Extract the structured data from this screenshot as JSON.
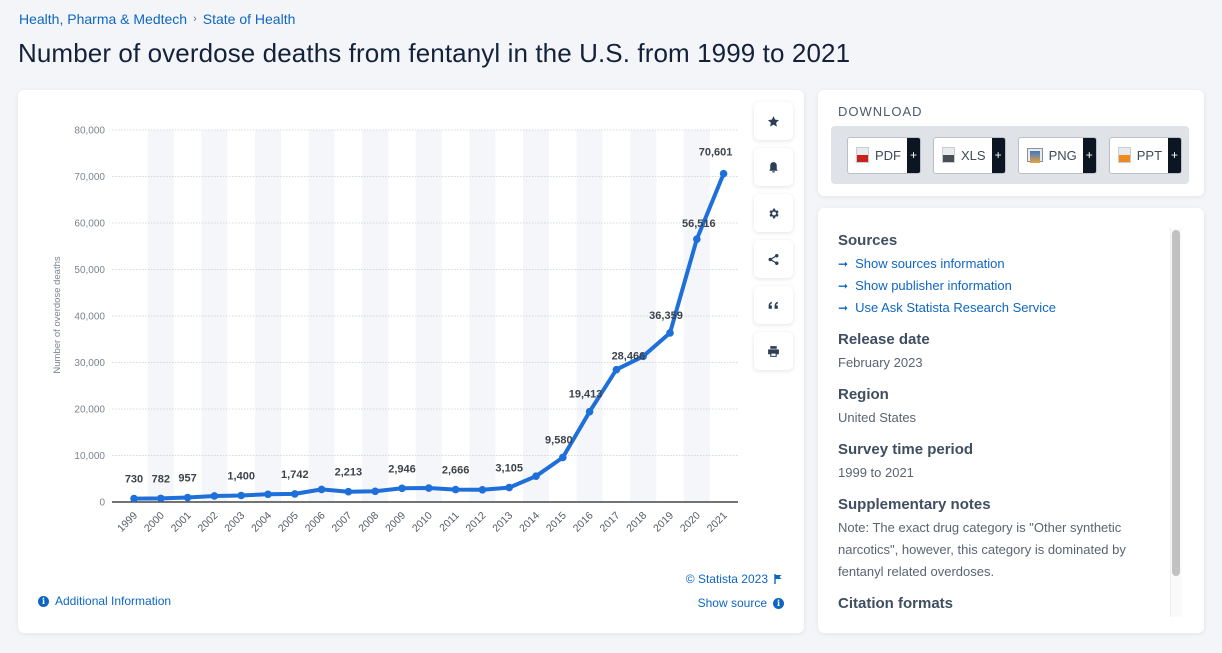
{
  "breadcrumb": [
    "Health, Pharma & Medtech",
    "State of Health"
  ],
  "breadcrumb_separator": "›",
  "title": "Number of overdose deaths from fentanyl in the U.S. from 1999 to 2021",
  "colors": {
    "line": "#1e6fd9",
    "accent": "#0e66c4",
    "band": "#f5f6f9",
    "title": "#14213a"
  },
  "chart_data": {
    "type": "line",
    "title": "Number of overdose deaths from fentanyl in the U.S. from 1999 to 2021",
    "xlabel": "",
    "ylabel": "Number of overdose deaths",
    "ylim": [
      0,
      80000
    ],
    "yticks": [
      0,
      10000,
      20000,
      30000,
      40000,
      50000,
      60000,
      70000,
      80000
    ],
    "ytick_labels": [
      "0",
      "10,000",
      "20,000",
      "30,000",
      "40,000",
      "50,000",
      "60,000",
      "70,000",
      "80,000"
    ],
    "grid": true,
    "legend": "none",
    "categories": [
      "1999",
      "2000",
      "2001",
      "2002",
      "2003",
      "2004",
      "2005",
      "2006",
      "2007",
      "2008",
      "2009",
      "2010",
      "2011",
      "2012",
      "2013",
      "2014",
      "2015",
      "2016",
      "2017",
      "2018",
      "2019",
      "2020",
      "2021"
    ],
    "series": [
      {
        "name": "Number of overdose deaths",
        "values": [
          730,
          782,
          957,
          1295,
          1400,
          1664,
          1742,
          2707,
          2213,
          2306,
          2946,
          3007,
          2666,
          2628,
          3105,
          5544,
          9580,
          19413,
          28466,
          31335,
          36359,
          56516,
          70601
        ],
        "labels": [
          "730",
          "782",
          "957",
          null,
          "1,400",
          null,
          "1,742",
          null,
          "2,213",
          null,
          "2,946",
          null,
          "2,666",
          null,
          "3,105",
          null,
          "9,580",
          "19,413",
          "28,466",
          null,
          "36,359",
          "56,516",
          "70,601"
        ]
      }
    ]
  },
  "chart_footer": {
    "copyright": "© Statista 2023",
    "show_source": "Show source",
    "additional_info": "Additional Information"
  },
  "toolbar": [
    {
      "name": "favorite",
      "icon": "star-icon"
    },
    {
      "name": "notify",
      "icon": "bell-icon"
    },
    {
      "name": "settings",
      "icon": "gear-icon"
    },
    {
      "name": "share",
      "icon": "share-icon"
    },
    {
      "name": "cite",
      "icon": "quote-icon"
    },
    {
      "name": "print",
      "icon": "printer-icon"
    }
  ],
  "download": {
    "title": "DOWNLOAD",
    "buttons": [
      {
        "label": "PDF",
        "plus": "+",
        "color": "#c8211f"
      },
      {
        "label": "XLS",
        "plus": "+",
        "color": "#4a4f55"
      },
      {
        "label": "PNG",
        "plus": "+",
        "color": "#3f78c5"
      },
      {
        "label": "PPT",
        "plus": "+",
        "color": "#f08a1c"
      }
    ]
  },
  "info": {
    "sources_heading": "Sources",
    "source_links": [
      "Show sources information",
      "Show publisher information",
      "Use Ask Statista Research Service"
    ],
    "release_heading": "Release date",
    "release_value": "February 2023",
    "region_heading": "Region",
    "region_value": "United States",
    "survey_heading": "Survey time period",
    "survey_value": "1999 to 2021",
    "notes_heading": "Supplementary notes",
    "notes_value": "Note: The exact drug category is \"Other synthetic narcotics\", however, this category is dominated by fentanyl related overdoses.",
    "citation_heading": "Citation formats"
  }
}
